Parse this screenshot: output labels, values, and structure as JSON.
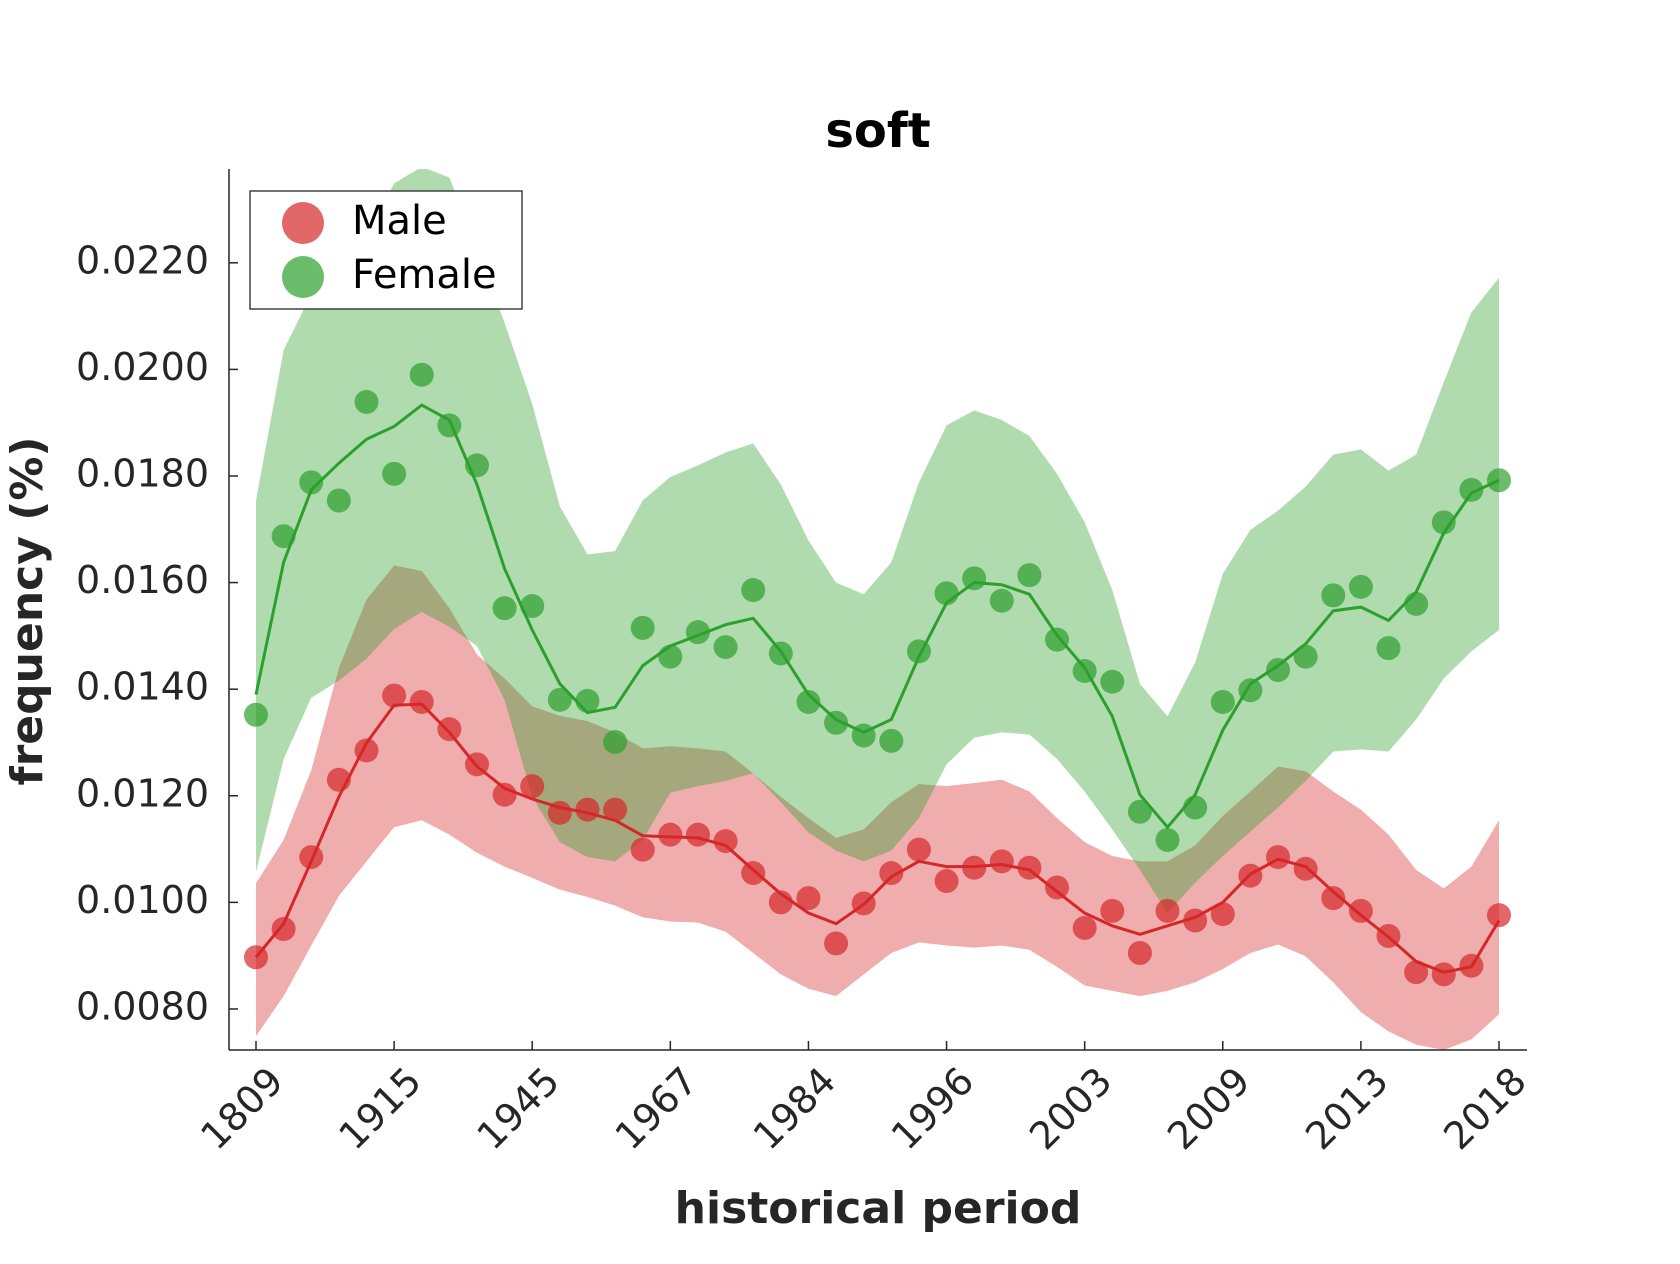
{
  "chart_data": {
    "type": "line",
    "title": "soft",
    "xlabel": "historical period",
    "ylabel": "frequency (%)",
    "legend_loc": "upper left",
    "categories": [
      "1809",
      null,
      null,
      null,
      null,
      "1915",
      null,
      null,
      null,
      null,
      "1945",
      null,
      null,
      null,
      null,
      "1967",
      null,
      null,
      null,
      null,
      "1984",
      null,
      null,
      null,
      null,
      "1996",
      null,
      null,
      null,
      null,
      "2003",
      null,
      null,
      null,
      null,
      "2009",
      null,
      null,
      null,
      null,
      "2013",
      null,
      null,
      null,
      null,
      "2018"
    ],
    "ylim": [
      0.00723,
      0.02376
    ],
    "yticks": [
      {
        "value": 0.008,
        "label": "0.0080"
      },
      {
        "value": 0.01,
        "label": "0.0100"
      },
      {
        "value": 0.012,
        "label": "0.0120"
      },
      {
        "value": 0.014,
        "label": "0.0140"
      },
      {
        "value": 0.016,
        "label": "0.0160"
      },
      {
        "value": 0.018,
        "label": "0.0180"
      },
      {
        "value": 0.02,
        "label": "0.0200"
      },
      {
        "value": 0.022,
        "label": "0.0220"
      }
    ],
    "series": [
      {
        "name": "Male",
        "color": "#d62728",
        "values": [
          0.00897,
          0.0095,
          0.01085,
          0.0123,
          0.01285,
          0.01388,
          0.01376,
          0.01325,
          0.01259,
          0.01202,
          0.01218,
          0.01168,
          0.01174,
          0.01174,
          0.01099,
          0.01127,
          0.01127,
          0.01115,
          0.01055,
          0.01,
          0.01008,
          0.00923,
          0.00998,
          0.01055,
          0.01099,
          0.0104,
          0.01065,
          0.01077,
          0.01065,
          0.01028,
          0.00952,
          0.00984,
          0.00905,
          0.00984,
          0.00966,
          0.00978,
          0.0105,
          0.01085,
          0.01063,
          0.01008,
          0.00984,
          0.00937,
          0.00869,
          0.00865,
          0.00881,
          0.00976
        ],
        "trend": [
          0.00897,
          0.0096,
          0.01077,
          0.01198,
          0.01299,
          0.0137,
          0.01372,
          0.01319,
          0.01255,
          0.01214,
          0.01194,
          0.01178,
          0.01168,
          0.01154,
          0.01125,
          0.01123,
          0.01121,
          0.01107,
          0.01061,
          0.01016,
          0.0098,
          0.0096,
          0.00996,
          0.01048,
          0.01077,
          0.01067,
          0.01067,
          0.01071,
          0.01061,
          0.0102,
          0.0098,
          0.00956,
          0.0094,
          0.00956,
          0.00972,
          0.01,
          0.01053,
          0.01081,
          0.01067,
          0.0102,
          0.00976,
          0.00935,
          0.00889,
          0.00869,
          0.00879,
          0.00966
        ],
        "band_upper": [
          0.01036,
          0.01117,
          0.01248,
          0.0144,
          0.01568,
          0.01632,
          0.01622,
          0.01552,
          0.01465,
          0.0142,
          0.01368,
          0.0135,
          0.0134,
          0.01319,
          0.01289,
          0.01293,
          0.01289,
          0.01283,
          0.01242,
          0.01198,
          0.01158,
          0.01121,
          0.01137,
          0.01188,
          0.01222,
          0.01218,
          0.01224,
          0.0123,
          0.01208,
          0.01158,
          0.01113,
          0.01087,
          0.01077,
          0.01077,
          0.01107,
          0.01162,
          0.01208,
          0.01255,
          0.01246,
          0.01208,
          0.01174,
          0.01127,
          0.01061,
          0.01026,
          0.01067,
          0.01154
        ],
        "band_lower": [
          0.00749,
          0.00824,
          0.00919,
          0.01012,
          0.01077,
          0.01141,
          0.01154,
          0.01127,
          0.01093,
          0.01067,
          0.01046,
          0.01024,
          0.0101,
          0.00994,
          0.00972,
          0.00964,
          0.00962,
          0.00945,
          0.00905,
          0.00865,
          0.00838,
          0.00824,
          0.00865,
          0.00905,
          0.00925,
          0.00919,
          0.00915,
          0.00919,
          0.00911,
          0.00879,
          0.00844,
          0.00834,
          0.00824,
          0.00834,
          0.0085,
          0.00875,
          0.00905,
          0.00921,
          0.00899,
          0.0085,
          0.00794,
          0.00758,
          0.00733,
          0.00723,
          0.00743,
          0.0079
        ]
      },
      {
        "name": "Female",
        "color": "#2ca02c",
        "values": [
          0.01352,
          0.01687,
          0.01788,
          0.01754,
          0.01939,
          0.01804,
          0.0199,
          0.01895,
          0.0182,
          0.01552,
          0.01556,
          0.0138,
          0.01378,
          0.01301,
          0.01515,
          0.01461,
          0.01507,
          0.01479,
          0.01586,
          0.01467,
          0.01376,
          0.01337,
          0.01313,
          0.01303,
          0.01471,
          0.0158,
          0.01608,
          0.01566,
          0.01614,
          0.01493,
          0.01434,
          0.01414,
          0.0117,
          0.01117,
          0.01178,
          0.01376,
          0.01398,
          0.01436,
          0.01461,
          0.01576,
          0.01592,
          0.01477,
          0.0156,
          0.01713,
          0.01774,
          0.01792
        ],
        "trend": [
          0.0139,
          0.01638,
          0.01774,
          0.01824,
          0.01869,
          0.01893,
          0.01933,
          0.01905,
          0.01784,
          0.01626,
          0.01511,
          0.0141,
          0.01356,
          0.01366,
          0.01444,
          0.01481,
          0.01501,
          0.01521,
          0.01533,
          0.01471,
          0.0139,
          0.01343,
          0.01319,
          0.01343,
          0.01461,
          0.01562,
          0.016,
          0.01596,
          0.01578,
          0.01501,
          0.0144,
          0.01349,
          0.01202,
          0.01141,
          0.01202,
          0.01323,
          0.0141,
          0.01444,
          0.01485,
          0.01547,
          0.01554,
          0.01529,
          0.01582,
          0.01693,
          0.01768,
          0.01792
        ],
        "band_upper": [
          0.01754,
          0.02036,
          0.02141,
          0.02188,
          0.02248,
          0.02349,
          0.0238,
          0.0236,
          0.02228,
          0.02087,
          0.01935,
          0.01743,
          0.01653,
          0.01659,
          0.01754,
          0.01798,
          0.0182,
          0.01844,
          0.01861,
          0.01784,
          0.01679,
          0.016,
          0.01578,
          0.01638,
          0.01788,
          0.01895,
          0.01923,
          0.01905,
          0.01875,
          0.01804,
          0.01713,
          0.01586,
          0.0141,
          0.01349,
          0.0145,
          0.01616,
          0.01699,
          0.01735,
          0.0178,
          0.0184,
          0.0185,
          0.0181,
          0.0184,
          0.01976,
          0.02107,
          0.02172
        ],
        "band_lower": [
          0.01057,
          0.01269,
          0.01384,
          0.01416,
          0.01457,
          0.01513,
          0.01545,
          0.01517,
          0.01481,
          0.0138,
          0.01198,
          0.01113,
          0.01085,
          0.01077,
          0.01117,
          0.01206,
          0.01218,
          0.01228,
          0.01242,
          0.01188,
          0.01131,
          0.01097,
          0.01077,
          0.01097,
          0.01158,
          0.01259,
          0.01309,
          0.01319,
          0.01315,
          0.01269,
          0.01208,
          0.01137,
          0.01061,
          0.0098,
          0.01037,
          0.01087,
          0.01133,
          0.01178,
          0.01228,
          0.01283,
          0.01287,
          0.01283,
          0.01343,
          0.0142,
          0.01471,
          0.01511
        ]
      }
    ]
  }
}
